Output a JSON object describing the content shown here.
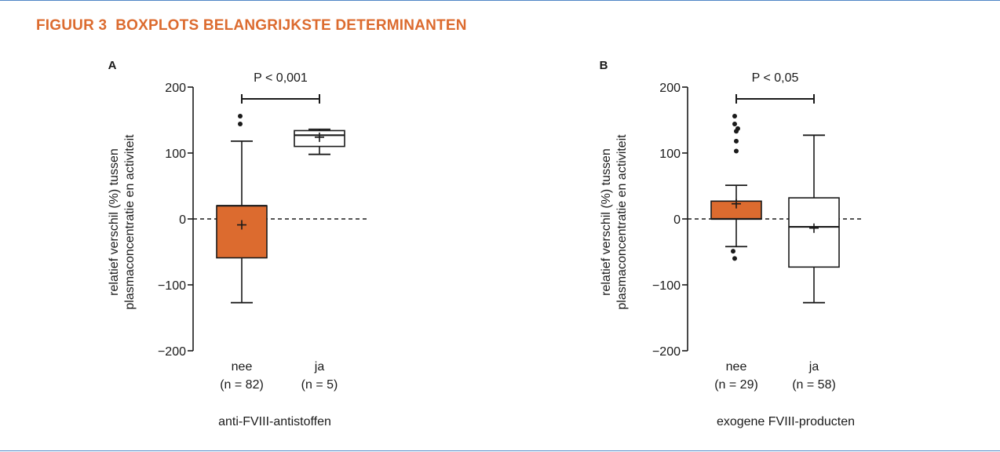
{
  "figure": {
    "title": "FIGUUR 3  BOXPLOTS BELANGRIJKSTE DETERMINANTEN"
  },
  "colors": {
    "accent": "#dc6b2f",
    "rule": "#4f86c6",
    "ink": "#1a1a1a"
  },
  "chart_data": [
    {
      "type": "box",
      "panel_label": "A",
      "significance": "P < 0,001",
      "ylabel": [
        "relatief verschil (%) tussen",
        "plasmaconcentratie en activiteit"
      ],
      "xlabel": "anti-FVIII-antistoffen",
      "ylim": [
        -200,
        200
      ],
      "yticks": [
        200,
        100,
        0,
        -100,
        -200
      ],
      "ytick_labels": [
        "200",
        "100",
        "0",
        "−100",
        "−200"
      ],
      "reference_line": 0,
      "groups": [
        {
          "label": "nee",
          "n_label": "(n = 82)",
          "fill": "#dc6b2f",
          "whisker_low": -127,
          "q1": -59,
          "median": 20,
          "q3": 20,
          "whisker_high": 118,
          "mean": -9,
          "outliers": [
            144,
            156
          ]
        },
        {
          "label": "ja",
          "n_label": "(n = 5)",
          "fill": "#ffffff",
          "whisker_low": 98,
          "q1": 110,
          "median": 127,
          "q3": 134,
          "whisker_high": 136,
          "mean": 124,
          "outliers": []
        }
      ]
    },
    {
      "type": "box",
      "panel_label": "B",
      "significance": "P < 0,05",
      "ylabel": [
        "relatief verschil (%) tussen",
        "plasmaconcentratie en activiteit"
      ],
      "xlabel": "exogene FVIII-producten",
      "ylim": [
        -200,
        200
      ],
      "yticks": [
        200,
        100,
        0,
        -100,
        -200
      ],
      "ytick_labels": [
        "200",
        "100",
        "0",
        "−100",
        "−200"
      ],
      "reference_line": 0,
      "groups": [
        {
          "label": "nee",
          "n_label": "(n = 29)",
          "fill": "#dc6b2f",
          "whisker_low": -42,
          "q1": 0,
          "median": 0,
          "q3": 27,
          "whisker_high": 51,
          "mean": 23,
          "outliers": [
            -49,
            -60,
            103,
            118,
            133,
            137,
            144,
            156
          ]
        },
        {
          "label": "ja",
          "n_label": "(n = 58)",
          "fill": "#ffffff",
          "whisker_low": -127,
          "q1": -73,
          "median": -12,
          "q3": 32,
          "whisker_high": 127,
          "mean": -14,
          "outliers": []
        }
      ]
    }
  ]
}
